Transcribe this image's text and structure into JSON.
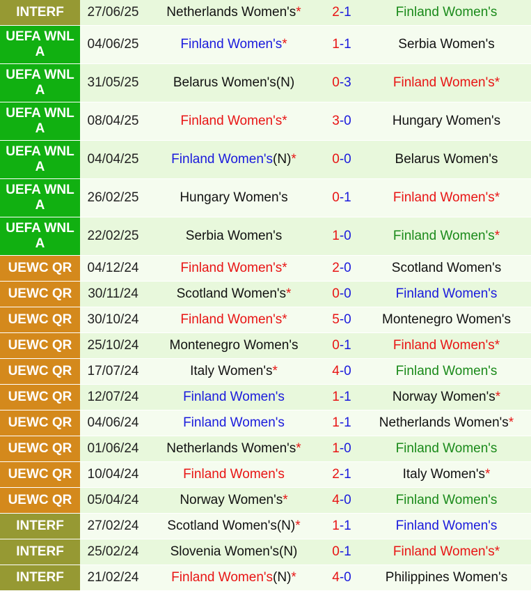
{
  "colors": {
    "interf": "#969933",
    "uefa": "#11b011",
    "uewc": "#d4891c",
    "row_light": "#e8f8dc",
    "row_alt": "#f5fcef",
    "finland_win": "#e81414",
    "finland_draw": "#1a1adc",
    "finland_loss": "#1a8a1a",
    "other_team": "#111111"
  },
  "matches": [
    {
      "comp": "INTERF",
      "comp_type": "interf",
      "date": "27/06/25",
      "home": "Netherlands Women's",
      "home_star": "*",
      "home_color": "black",
      "score_h": "2",
      "score_a": "1",
      "away": "Finland Women's",
      "away_star": "",
      "away_color": "green",
      "h": 36
    },
    {
      "comp": "UEFA WNL A",
      "comp_type": "uefa",
      "date": "04/06/25",
      "home": "Finland Women's",
      "home_star": "*",
      "home_color": "blue",
      "score_h": "1",
      "score_a": "1",
      "away": "Serbia Women's",
      "away_star": "",
      "away_color": "black",
      "h": 55
    },
    {
      "comp": "UEFA WNL A",
      "comp_type": "uefa",
      "date": "31/05/25",
      "home": "Belarus Women's(N)",
      "home_star": "",
      "home_color": "black",
      "score_h": "0",
      "score_a": "3",
      "away": "Finland Women's",
      "away_star": "*",
      "away_color": "red",
      "h": 55
    },
    {
      "comp": "UEFA WNL A",
      "comp_type": "uefa",
      "date": "08/04/25",
      "home": "Finland Women's",
      "home_star": "*",
      "home_color": "red",
      "score_h": "3",
      "score_a": "0",
      "away": "Hungary Women's",
      "away_star": "",
      "away_color": "black",
      "h": 55
    },
    {
      "comp": "UEFA WNL A",
      "comp_type": "uefa",
      "date": "04/04/25",
      "home": "Finland Women's",
      "home_suffix": "(N)",
      "home_star": "*",
      "home_color": "blue",
      "score_h": "0",
      "score_a": "0",
      "away": "Belarus Women's",
      "away_star": "",
      "away_color": "black",
      "h": 55
    },
    {
      "comp": "UEFA WNL A",
      "comp_type": "uefa",
      "date": "26/02/25",
      "home": "Hungary Women's",
      "home_star": "",
      "home_color": "black",
      "score_h": "0",
      "score_a": "1",
      "away": "Finland Women's",
      "away_star": "*",
      "away_color": "red",
      "h": 55
    },
    {
      "comp": "UEFA WNL A",
      "comp_type": "uefa",
      "date": "22/02/25",
      "home": "Serbia Women's",
      "home_star": "",
      "home_color": "black",
      "score_h": "1",
      "score_a": "0",
      "away": "Finland Women's",
      "away_star": "*",
      "away_color": "green",
      "h": 55
    },
    {
      "comp": "UEWC QR",
      "comp_type": "uewc",
      "date": "04/12/24",
      "home": "Finland Women's",
      "home_star": "*",
      "home_color": "red",
      "score_h": "2",
      "score_a": "0",
      "away": "Scotland Women's",
      "away_star": "",
      "away_color": "black",
      "h": 37
    },
    {
      "comp": "UEWC QR",
      "comp_type": "uewc",
      "date": "30/11/24",
      "home": "Scotland Women's",
      "home_star": "*",
      "home_color": "black",
      "score_h": "0",
      "score_a": "0",
      "away": "Finland Women's",
      "away_star": "",
      "away_color": "blue",
      "h": 37
    },
    {
      "comp": "UEWC QR",
      "comp_type": "uewc",
      "date": "30/10/24",
      "home": "Finland Women's",
      "home_star": "*",
      "home_color": "red",
      "score_h": "5",
      "score_a": "0",
      "away": "Montenegro Women's",
      "away_star": "",
      "away_color": "black",
      "h": 37
    },
    {
      "comp": "UEWC QR",
      "comp_type": "uewc",
      "date": "25/10/24",
      "home": "Montenegro Women's",
      "home_star": "",
      "home_color": "black",
      "score_h": "0",
      "score_a": "1",
      "away": "Finland Women's",
      "away_star": "*",
      "away_color": "red",
      "h": 37
    },
    {
      "comp": "UEWC QR",
      "comp_type": "uewc",
      "date": "17/07/24",
      "home": "Italy Women's",
      "home_star": "*",
      "home_color": "black",
      "score_h": "4",
      "score_a": "0",
      "away": "Finland Women's",
      "away_star": "",
      "away_color": "green",
      "h": 37
    },
    {
      "comp": "UEWC QR",
      "comp_type": "uewc",
      "date": "12/07/24",
      "home": "Finland Women's",
      "home_star": "",
      "home_color": "blue",
      "score_h": "1",
      "score_a": "1",
      "away": "Norway Women's",
      "away_star": "*",
      "away_color": "black",
      "h": 37
    },
    {
      "comp": "UEWC QR",
      "comp_type": "uewc",
      "date": "04/06/24",
      "home": "Finland Women's",
      "home_star": "",
      "home_color": "blue",
      "score_h": "1",
      "score_a": "1",
      "away": "Netherlands Women's",
      "away_star": "*",
      "away_color": "black",
      "h": 37
    },
    {
      "comp": "UEWC QR",
      "comp_type": "uewc",
      "date": "01/06/24",
      "home": "Netherlands Women's",
      "home_star": "*",
      "home_color": "black",
      "score_h": "1",
      "score_a": "0",
      "away": "Finland Women's",
      "away_star": "",
      "away_color": "green",
      "h": 37
    },
    {
      "comp": "UEWC QR",
      "comp_type": "uewc",
      "date": "10/04/24",
      "home": "Finland Women's",
      "home_star": "",
      "home_color": "red",
      "score_h": "2",
      "score_a": "1",
      "away": "Italy Women's",
      "away_star": "*",
      "away_color": "black",
      "h": 37
    },
    {
      "comp": "UEWC QR",
      "comp_type": "uewc",
      "date": "05/04/24",
      "home": "Norway Women's",
      "home_star": "*",
      "home_color": "black",
      "score_h": "4",
      "score_a": "0",
      "away": "Finland Women's",
      "away_star": "",
      "away_color": "green",
      "h": 37
    },
    {
      "comp": "INTERF",
      "comp_type": "interf",
      "date": "27/02/24",
      "home": "Scotland Women's(N)",
      "home_star": "*",
      "home_color": "black",
      "score_h": "1",
      "score_a": "1",
      "away": "Finland Women's",
      "away_star": "",
      "away_color": "blue",
      "h": 37
    },
    {
      "comp": "INTERF",
      "comp_type": "interf",
      "date": "25/02/24",
      "home": "Slovenia Women's(N)",
      "home_star": "",
      "home_color": "black",
      "score_h": "0",
      "score_a": "1",
      "away": "Finland Women's",
      "away_star": "*",
      "away_color": "red",
      "h": 37
    },
    {
      "comp": "INTERF",
      "comp_type": "interf",
      "date": "21/02/24",
      "home": "Finland Women's",
      "home_suffix": "(N)",
      "home_star": "*",
      "home_color": "red",
      "score_h": "4",
      "score_a": "0",
      "away": "Philippines Women's",
      "away_star": "",
      "away_color": "black",
      "h": 37
    }
  ]
}
